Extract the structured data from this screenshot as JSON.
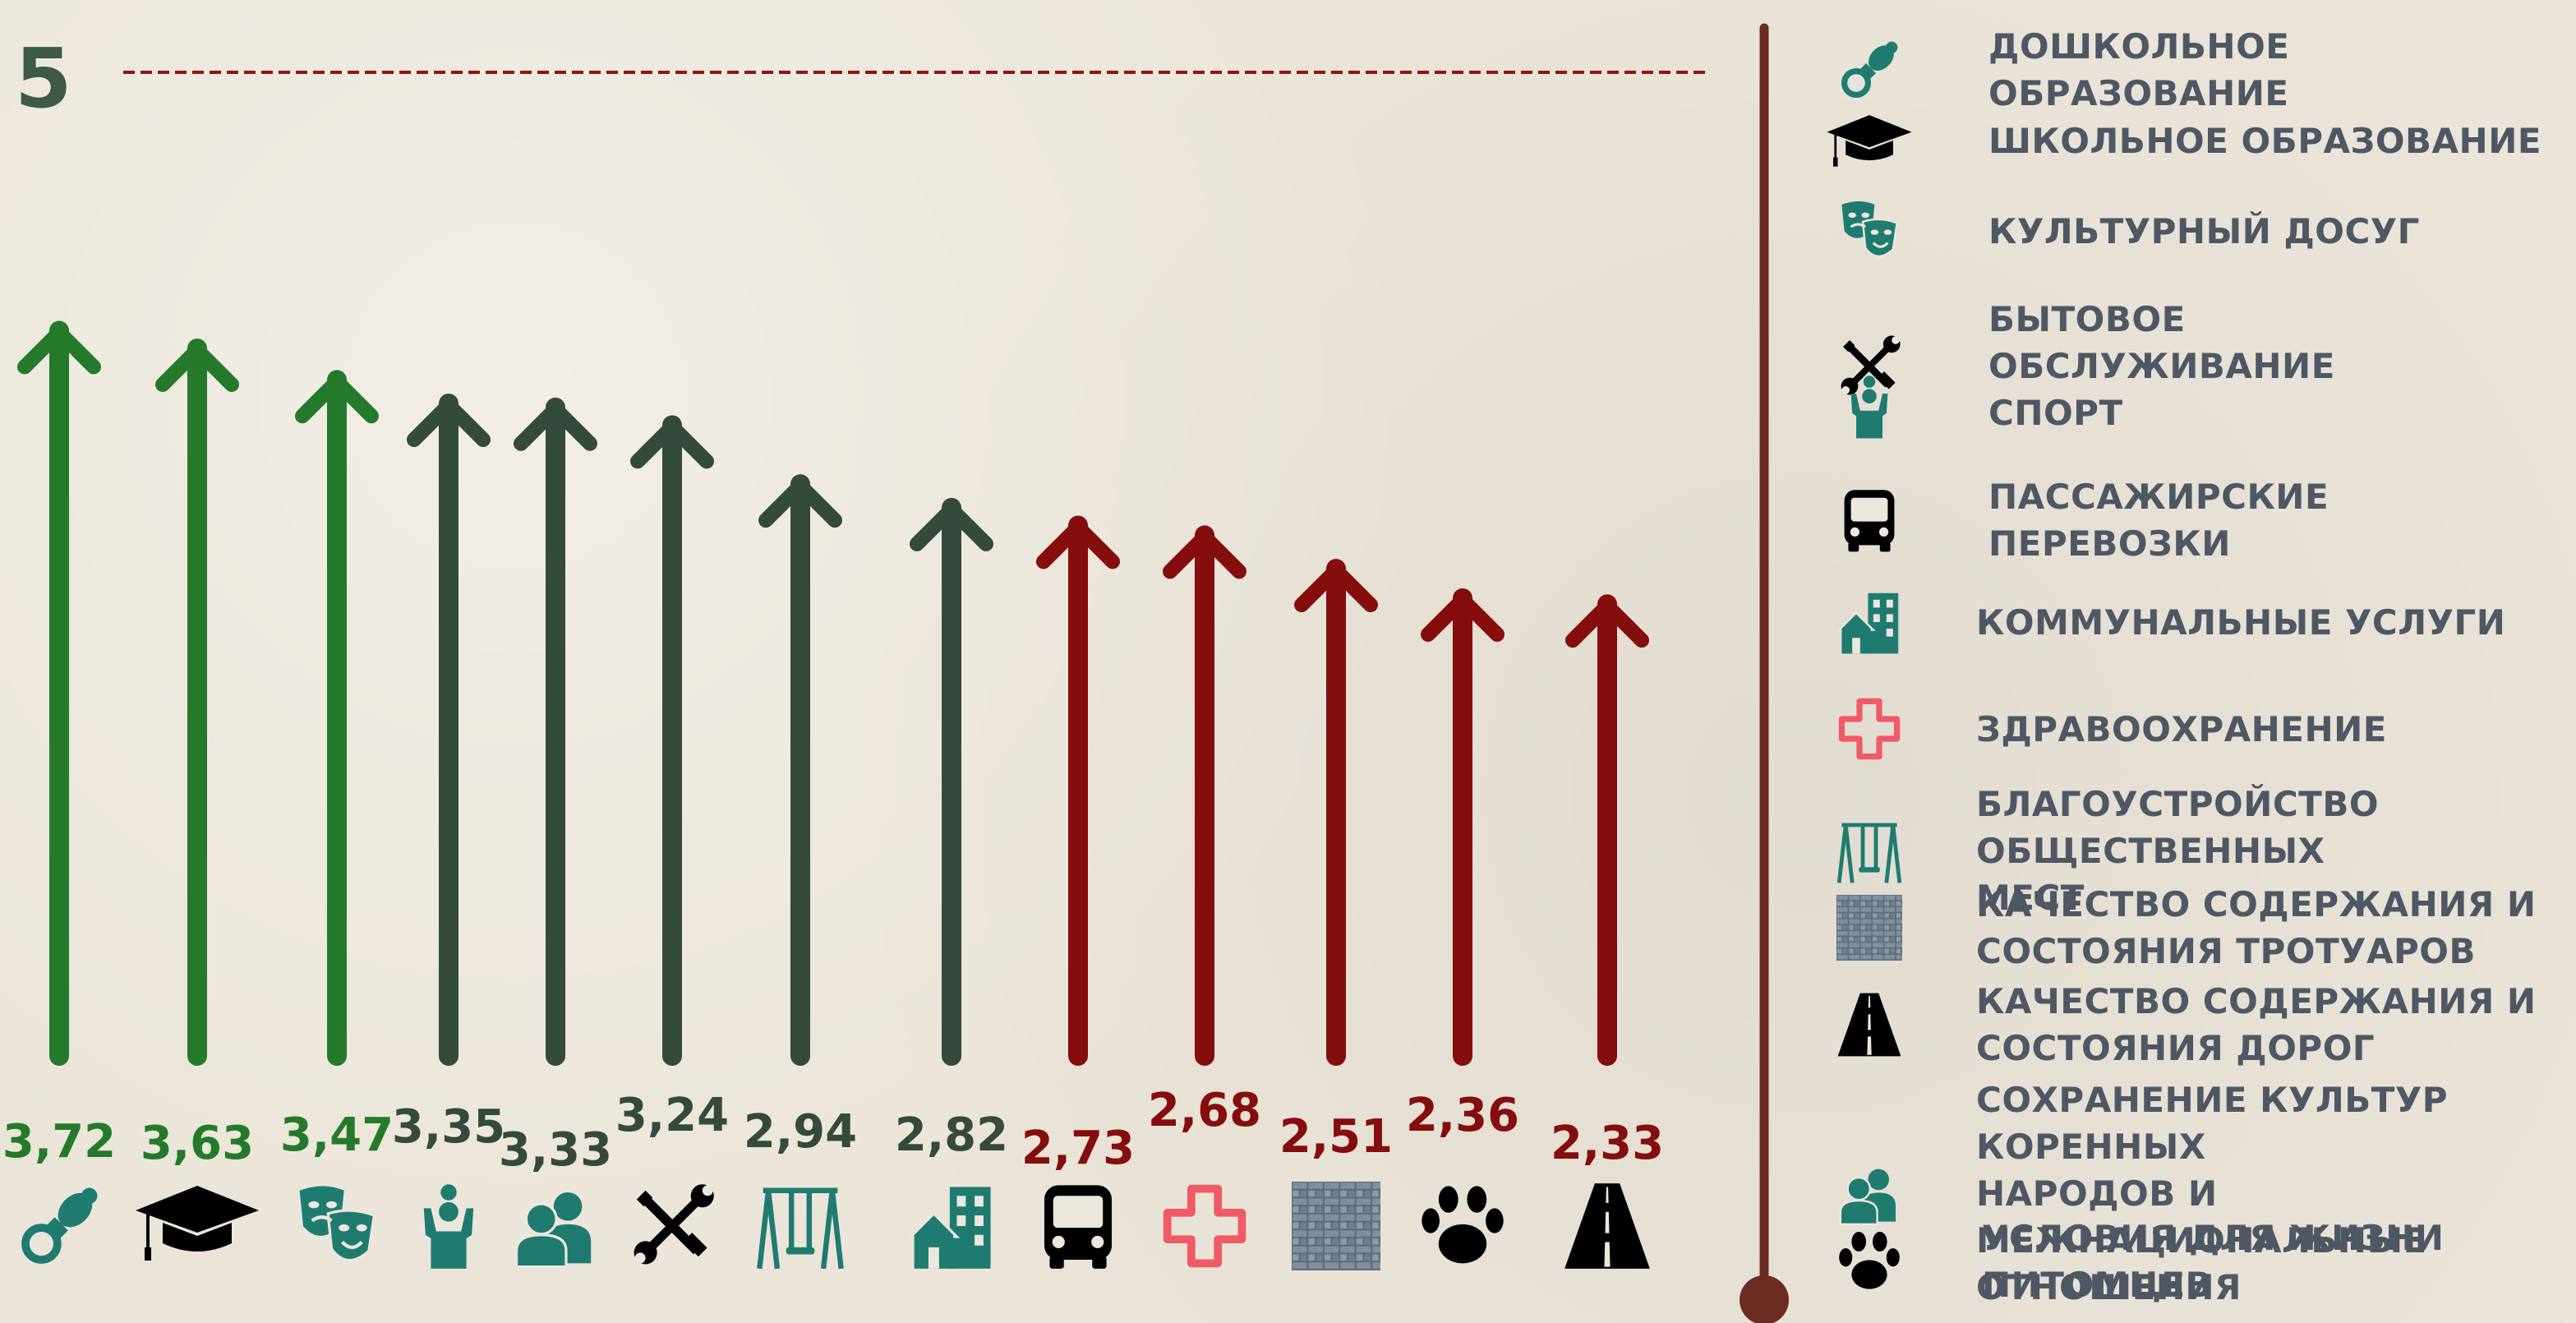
{
  "chart_data": {
    "type": "bar",
    "ylim": [
      0,
      5
    ],
    "max_label": "5",
    "categories": [
      "дошкольное образование",
      "школьное образование",
      "культурный досуг",
      "спорт",
      "сохранение культур коренных народов и межнациональные отношения",
      "бытовое обслуживание",
      "благоустройство общественных мест",
      "коммунальные услуги",
      "пассажирские перевозки",
      "здравоохранение",
      "качество содержания и состояния тротуаров",
      "условия для жизни питомцев",
      "качество содержания и состояния дорог"
    ],
    "values": [
      3.72,
      3.63,
      3.47,
      3.35,
      3.33,
      3.24,
      2.94,
      2.82,
      2.73,
      2.68,
      2.51,
      2.36,
      2.33
    ],
    "value_labels": [
      "3,72",
      "3,63",
      "3,47",
      "3,35",
      "3,33",
      "3,24",
      "2,94",
      "2,82",
      "2,73",
      "2,68",
      "2,51",
      "2,36",
      "2,33"
    ],
    "icons": [
      "pacifier-icon",
      "graduation-cap-icon",
      "theater-masks-icon",
      "sport-icon",
      "people-icon",
      "tools-icon",
      "swing-icon",
      "houses-icon",
      "bus-icon",
      "medical-cross-icon",
      "pavement-icon",
      "paw-icon",
      "road-icon"
    ],
    "bar_colors": [
      "#247a2a",
      "#247a2a",
      "#247a2a",
      "#334a3c",
      "#334a3c",
      "#334a3c",
      "#334a3c",
      "#334a3c",
      "#850d0d",
      "#850d0d",
      "#850d0d",
      "#850d0d",
      "#850d0d"
    ],
    "label_colors": [
      "#247a2a",
      "#247a2a",
      "#247a2a",
      "#334a3c",
      "#334a3c",
      "#334a3c",
      "#334a3c",
      "#334a3c",
      "#850d0d",
      "#850d0d",
      "#850d0d",
      "#850d0d",
      "#850d0d"
    ]
  },
  "colors": {
    "green": "#247a2a",
    "dark_green": "#334a3c",
    "red": "#850d0d",
    "teal": "#1f7b70",
    "pink": "#f05a67",
    "legend_text": "#4e5864",
    "divider": "#6b2c22",
    "dashed_line": "#8e1515"
  },
  "legend": {
    "items": [
      {
        "icon": "pacifier-icon",
        "label": "ДОШКОЛЬНОЕ ОБРАЗОВАНИЕ"
      },
      {
        "icon": "graduation-cap-icon",
        "label": "ШКОЛЬНОЕ ОБРАЗОВАНИЕ"
      },
      {
        "icon": "theater-masks-icon",
        "label": "КУЛЬТУРНЫЙ ДОСУГ"
      },
      {
        "icon": "tools-icon",
        "label": "БЫТОВОЕ\nОБСЛУЖИВАНИЕ\nСПОРТ"
      },
      {
        "icon": "bus-icon",
        "label": "ПАССАЖИРСКИЕ\nПЕРЕВОЗКИ"
      },
      {
        "icon": "houses-icon",
        "label": "КОММУНАЛЬНЫЕ УСЛУГИ"
      },
      {
        "icon": "medical-cross-icon",
        "label": "ЗДРАВООХРАНЕНИЕ"
      },
      {
        "icon": "swing-icon",
        "label": "БЛАГОУСТРОЙСТВО ОБЩЕСТВЕННЫХ\nМЕСТ"
      },
      {
        "icon": "pavement-icon",
        "label": "КАЧЕСТВО СОДЕРЖАНИЯ И\nСОСТОЯНИЯ ТРОТУАРОВ"
      },
      {
        "icon": "road-icon",
        "label": "КАЧЕСТВО СОДЕРЖАНИЯ И\nСОСТОЯНИЯ ДОРОГ"
      },
      {
        "icon": "people-icon",
        "label": "СОХРАНЕНИЕ КУЛЬТУР КОРЕННЫХ\nНАРОДОВ И МЕЖНАЦИОНАЛЬНЫЕ\nОТНОШЕНИЯ"
      },
      {
        "icon": "paw-icon",
        "label": "УСЛОВИЯ ДЛЯ ЖИЗНИ ПИТОМЦЕВ"
      }
    ],
    "extra_icon": "sport-icon"
  }
}
